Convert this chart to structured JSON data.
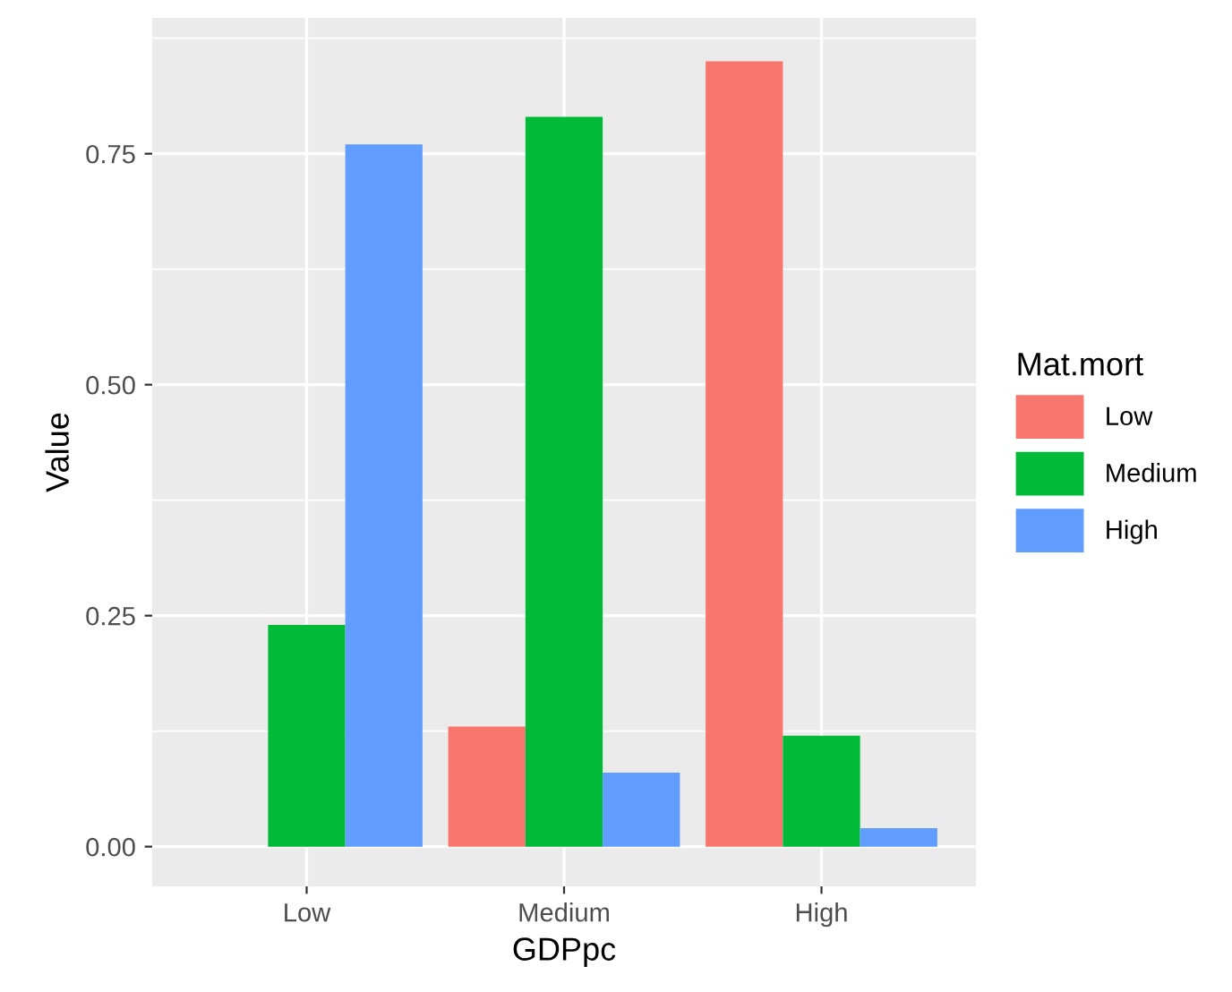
{
  "chart_data": {
    "type": "bar",
    "xlabel": "GDPpc",
    "ylabel": "Value",
    "legend_title": "Mat.mort",
    "categories": [
      "Low",
      "Medium",
      "High"
    ],
    "series": [
      {
        "name": "Low",
        "color": "#f8766d",
        "values": [
          null,
          0.13,
          0.85
        ]
      },
      {
        "name": "Medium",
        "color": "#00ba38",
        "values": [
          0.24,
          0.79,
          0.12
        ]
      },
      {
        "name": "High",
        "color": "#619cff",
        "values": [
          0.76,
          0.08,
          0.02
        ]
      }
    ],
    "ylim": [
      -0.043,
      0.897
    ],
    "yticks": [
      {
        "value": 0,
        "label": "0.00"
      },
      {
        "value": 0.25,
        "label": "0.25"
      },
      {
        "value": 0.5,
        "label": "0.50"
      },
      {
        "value": 0.75,
        "label": "0.75"
      }
    ],
    "grid": true,
    "legend": "right"
  }
}
